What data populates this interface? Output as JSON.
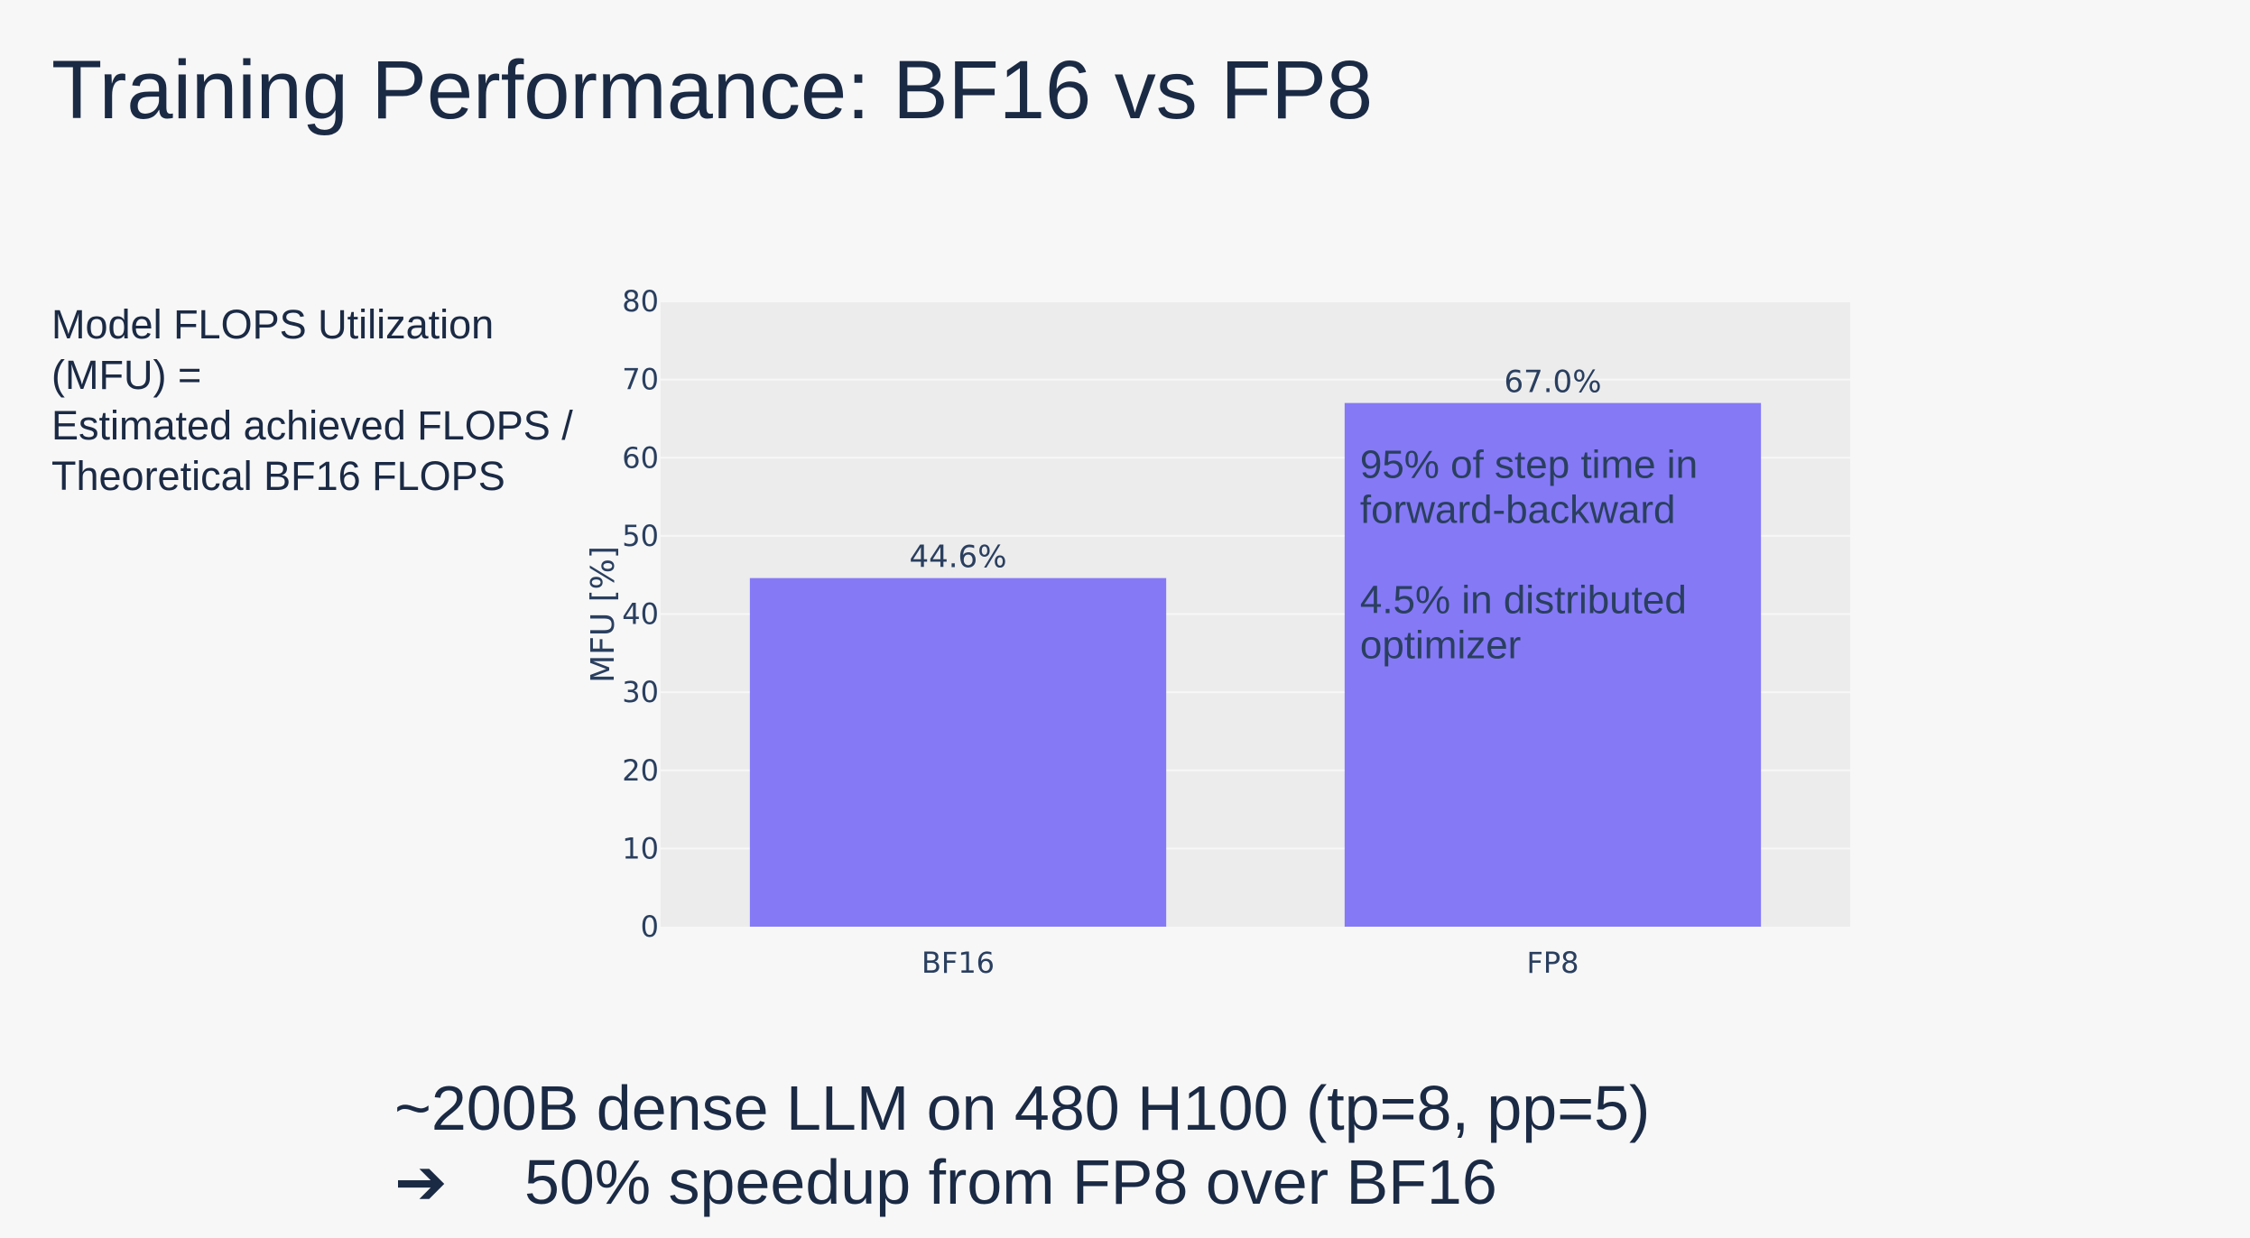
{
  "slide": {
    "title": "Training Performance: BF16 vs FP8",
    "definition_lines": [
      "Model FLOPS Utilization",
      "(MFU) =",
      "Estimated achieved FLOPS /",
      "Theoretical BF16 FLOPS"
    ],
    "footer_line1": "~200B dense LLM on 480 H100 (tp=8, pp=5)",
    "footer_line2": "50% speedup from FP8 over BF16",
    "footer_arrow_icon": "right-arrow-icon"
  },
  "chart_data": {
    "type": "bar",
    "categories": [
      "BF16",
      "FP8"
    ],
    "values": [
      44.6,
      67.0
    ],
    "data_labels": [
      "44.6%",
      "67.0%"
    ],
    "ylabel": "MFU [%]",
    "xlabel": "",
    "ylim": [
      0,
      80
    ],
    "yticks": [
      0,
      10,
      20,
      30,
      40,
      50,
      60,
      70,
      80
    ],
    "grid": true,
    "annotation_lines": [
      "95% of step time in",
      "forward-backward",
      "",
      "4.5% in distributed",
      "optimizer"
    ],
    "colors": {
      "bar": "#8579f6",
      "plot_bg": "#ececec",
      "grid": "#f7f7f7",
      "text": "#2a3f5f"
    }
  }
}
